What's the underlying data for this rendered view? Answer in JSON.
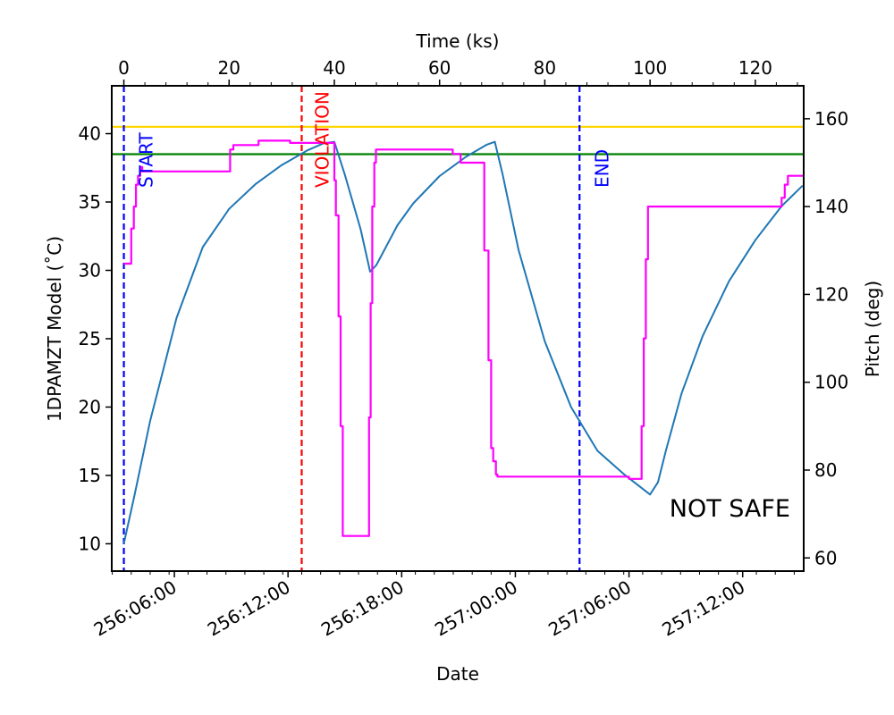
{
  "chart_data": {
    "type": "line",
    "xlabel_bottom": "Date",
    "xlabel_top": "Time (ks)",
    "ylabel_left": "1DPAMZT Model ($^\\circ$C)",
    "ylabel_left_display": "1DPAMZT Model (˚C)",
    "ylabel_right": "Pitch (deg)",
    "status_text": "NOT SAFE",
    "colors": {
      "temperature": "#1f77b4",
      "pitch": "#ff00ff",
      "planning_limit": "#ffd700",
      "yellow_limit": "#008000",
      "start_end": "#0000ff",
      "violation": "#ff0000"
    },
    "xlim_ks": [
      -2.3,
      129.2
    ],
    "ylim_left": [
      8.0,
      43.5
    ],
    "ylim_right": [
      57.0,
      167.5
    ],
    "x_top_ticks": [
      0,
      20,
      40,
      60,
      80,
      100,
      120
    ],
    "x_bottom_ticks": [
      {
        "label": "256:06:00",
        "ks": 9.6
      },
      {
        "label": "256:12:00",
        "ks": 31.2
      },
      {
        "label": "256:18:00",
        "ks": 52.8
      },
      {
        "label": "257:00:00",
        "ks": 74.4
      },
      {
        "label": "257:06:00",
        "ks": 96.0
      },
      {
        "label": "257:12:00",
        "ks": 117.6
      }
    ],
    "y_left_ticks": [
      10,
      15,
      20,
      25,
      30,
      35,
      40
    ],
    "y_right_ticks": [
      60,
      80,
      100,
      120,
      140,
      160
    ],
    "horizontal_limits": [
      {
        "name": "planning limit",
        "value": 40.5
      },
      {
        "name": "yellow limit",
        "value": 38.5
      }
    ],
    "vertical_markers": [
      {
        "label": "START",
        "x": 0.0,
        "color": "#0000ff"
      },
      {
        "label": "VIOLATION",
        "x": 33.8,
        "color": "#ff0000"
      },
      {
        "label": "END",
        "x": 86.6,
        "color": "#0000ff"
      }
    ],
    "series": [
      {
        "axis": "left",
        "x": [
          0,
          2,
          5,
          10,
          15,
          20,
          25,
          30,
          35,
          38,
          40,
          42,
          45,
          46.8,
          48,
          52,
          55,
          60,
          65,
          69,
          70.5,
          72,
          75,
          80,
          85,
          90,
          95,
          100,
          101.5,
          103,
          106,
          110,
          115,
          120,
          125,
          129
        ],
        "values": [
          10.0,
          13.5,
          19.0,
          26.5,
          31.7,
          34.5,
          36.3,
          37.7,
          38.8,
          39.3,
          39.4,
          37.0,
          33.0,
          29.9,
          30.4,
          33.3,
          34.9,
          36.9,
          38.3,
          39.2,
          39.4,
          37.0,
          31.5,
          24.8,
          20.0,
          16.8,
          15.1,
          13.6,
          14.5,
          16.8,
          21.0,
          25.2,
          29.2,
          32.2,
          34.7,
          36.2
        ]
      },
      {
        "axis": "right",
        "x": [
          0,
          1.4,
          1.4,
          1.9,
          1.9,
          2.3,
          2.3,
          2.7,
          2.7,
          3.1,
          3.1,
          3.5,
          3.5,
          20.2,
          20.2,
          20.8,
          20.8,
          25.6,
          25.6,
          31.6,
          31.6,
          40.0,
          40.0,
          40.3,
          40.3,
          40.8,
          40.8,
          41.2,
          41.2,
          41.6,
          41.6,
          46.6,
          46.6,
          46.9,
          46.9,
          47.2,
          47.2,
          47.6,
          47.6,
          47.9,
          47.9,
          48.2,
          48.2,
          62.5,
          62.5,
          64.0,
          64.0,
          68.5,
          68.5,
          69.3,
          69.3,
          69.8,
          69.8,
          70.2,
          70.2,
          70.7,
          70.7,
          71.0,
          71.0,
          96.0,
          96.0,
          98.4,
          98.4,
          98.8,
          98.8,
          99.2,
          99.2,
          99.6,
          99.6,
          100.0,
          100.0,
          125.0,
          125.0,
          125.6,
          125.6,
          126.2,
          126.2,
          129.2
        ],
        "values": [
          127,
          127,
          135,
          135,
          140,
          140,
          145,
          145,
          147,
          147,
          149,
          149,
          148,
          148,
          153,
          153,
          154,
          154,
          155,
          155,
          154.5,
          154.5,
          146,
          146,
          138,
          138,
          115,
          115,
          90,
          90,
          65,
          65,
          92,
          92,
          118,
          118,
          140,
          140,
          150,
          150,
          153,
          153,
          153,
          153,
          152,
          152,
          150,
          150,
          130,
          130,
          105,
          105,
          85,
          85,
          82,
          82,
          79,
          79,
          78.5,
          78.5,
          78,
          78,
          90,
          90,
          110,
          110,
          128,
          128,
          140,
          140,
          140,
          140,
          142,
          142,
          145,
          145,
          147,
          147
        ]
      }
    ]
  }
}
